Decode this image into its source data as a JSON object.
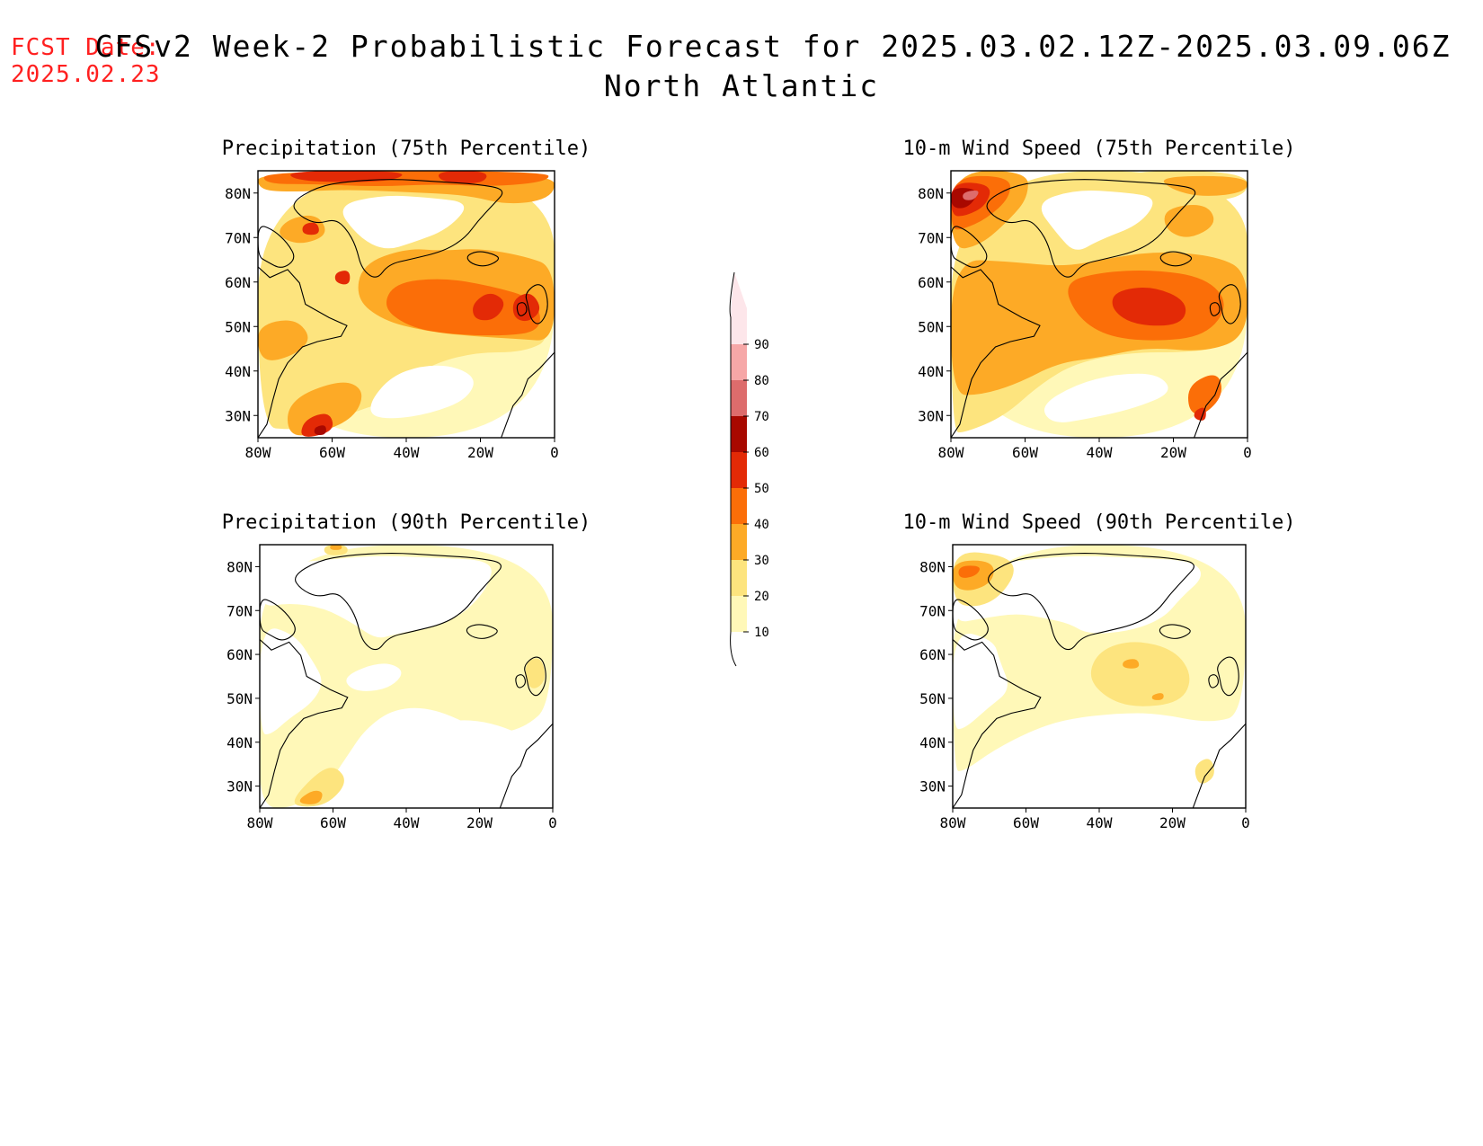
{
  "header": {
    "fcst_label": "FCST Date:",
    "fcst_date": "2025.02.23",
    "title": "CFSv2 Week-2 Probabilistic Forecast for 2025.03.02.12Z-2025.03.09.06Z",
    "subtitle": "North Atlantic"
  },
  "panels": [
    {
      "id": "precip75",
      "title": "Precipitation (75th Percentile)",
      "level": 0.75
    },
    {
      "id": "wind75",
      "title": "10-m Wind Speed (75th Percentile)",
      "level": 0.8
    },
    {
      "id": "precip90",
      "title": "Precipitation (90th Percentile)",
      "level": 0.25
    },
    {
      "id": "wind90",
      "title": "10-m Wind Speed (90th Percentile)",
      "level": 0.3
    }
  ],
  "axes": {
    "lat_labels": [
      "80N",
      "70N",
      "60N",
      "50N",
      "40N",
      "30N"
    ],
    "lon_labels": [
      "80W",
      "60W",
      "40W",
      "20W",
      "0"
    ]
  },
  "colorbar": {
    "levels": [
      "10",
      "20",
      "30",
      "40",
      "50",
      "60",
      "70",
      "80",
      "90"
    ],
    "colors": [
      "#fff8b8",
      "#fde47e",
      "#fdaa26",
      "#fb6e08",
      "#e32a06",
      "#a80800",
      "#dd6c6c",
      "#f6a7a7",
      "#fde6ea"
    ]
  }
}
